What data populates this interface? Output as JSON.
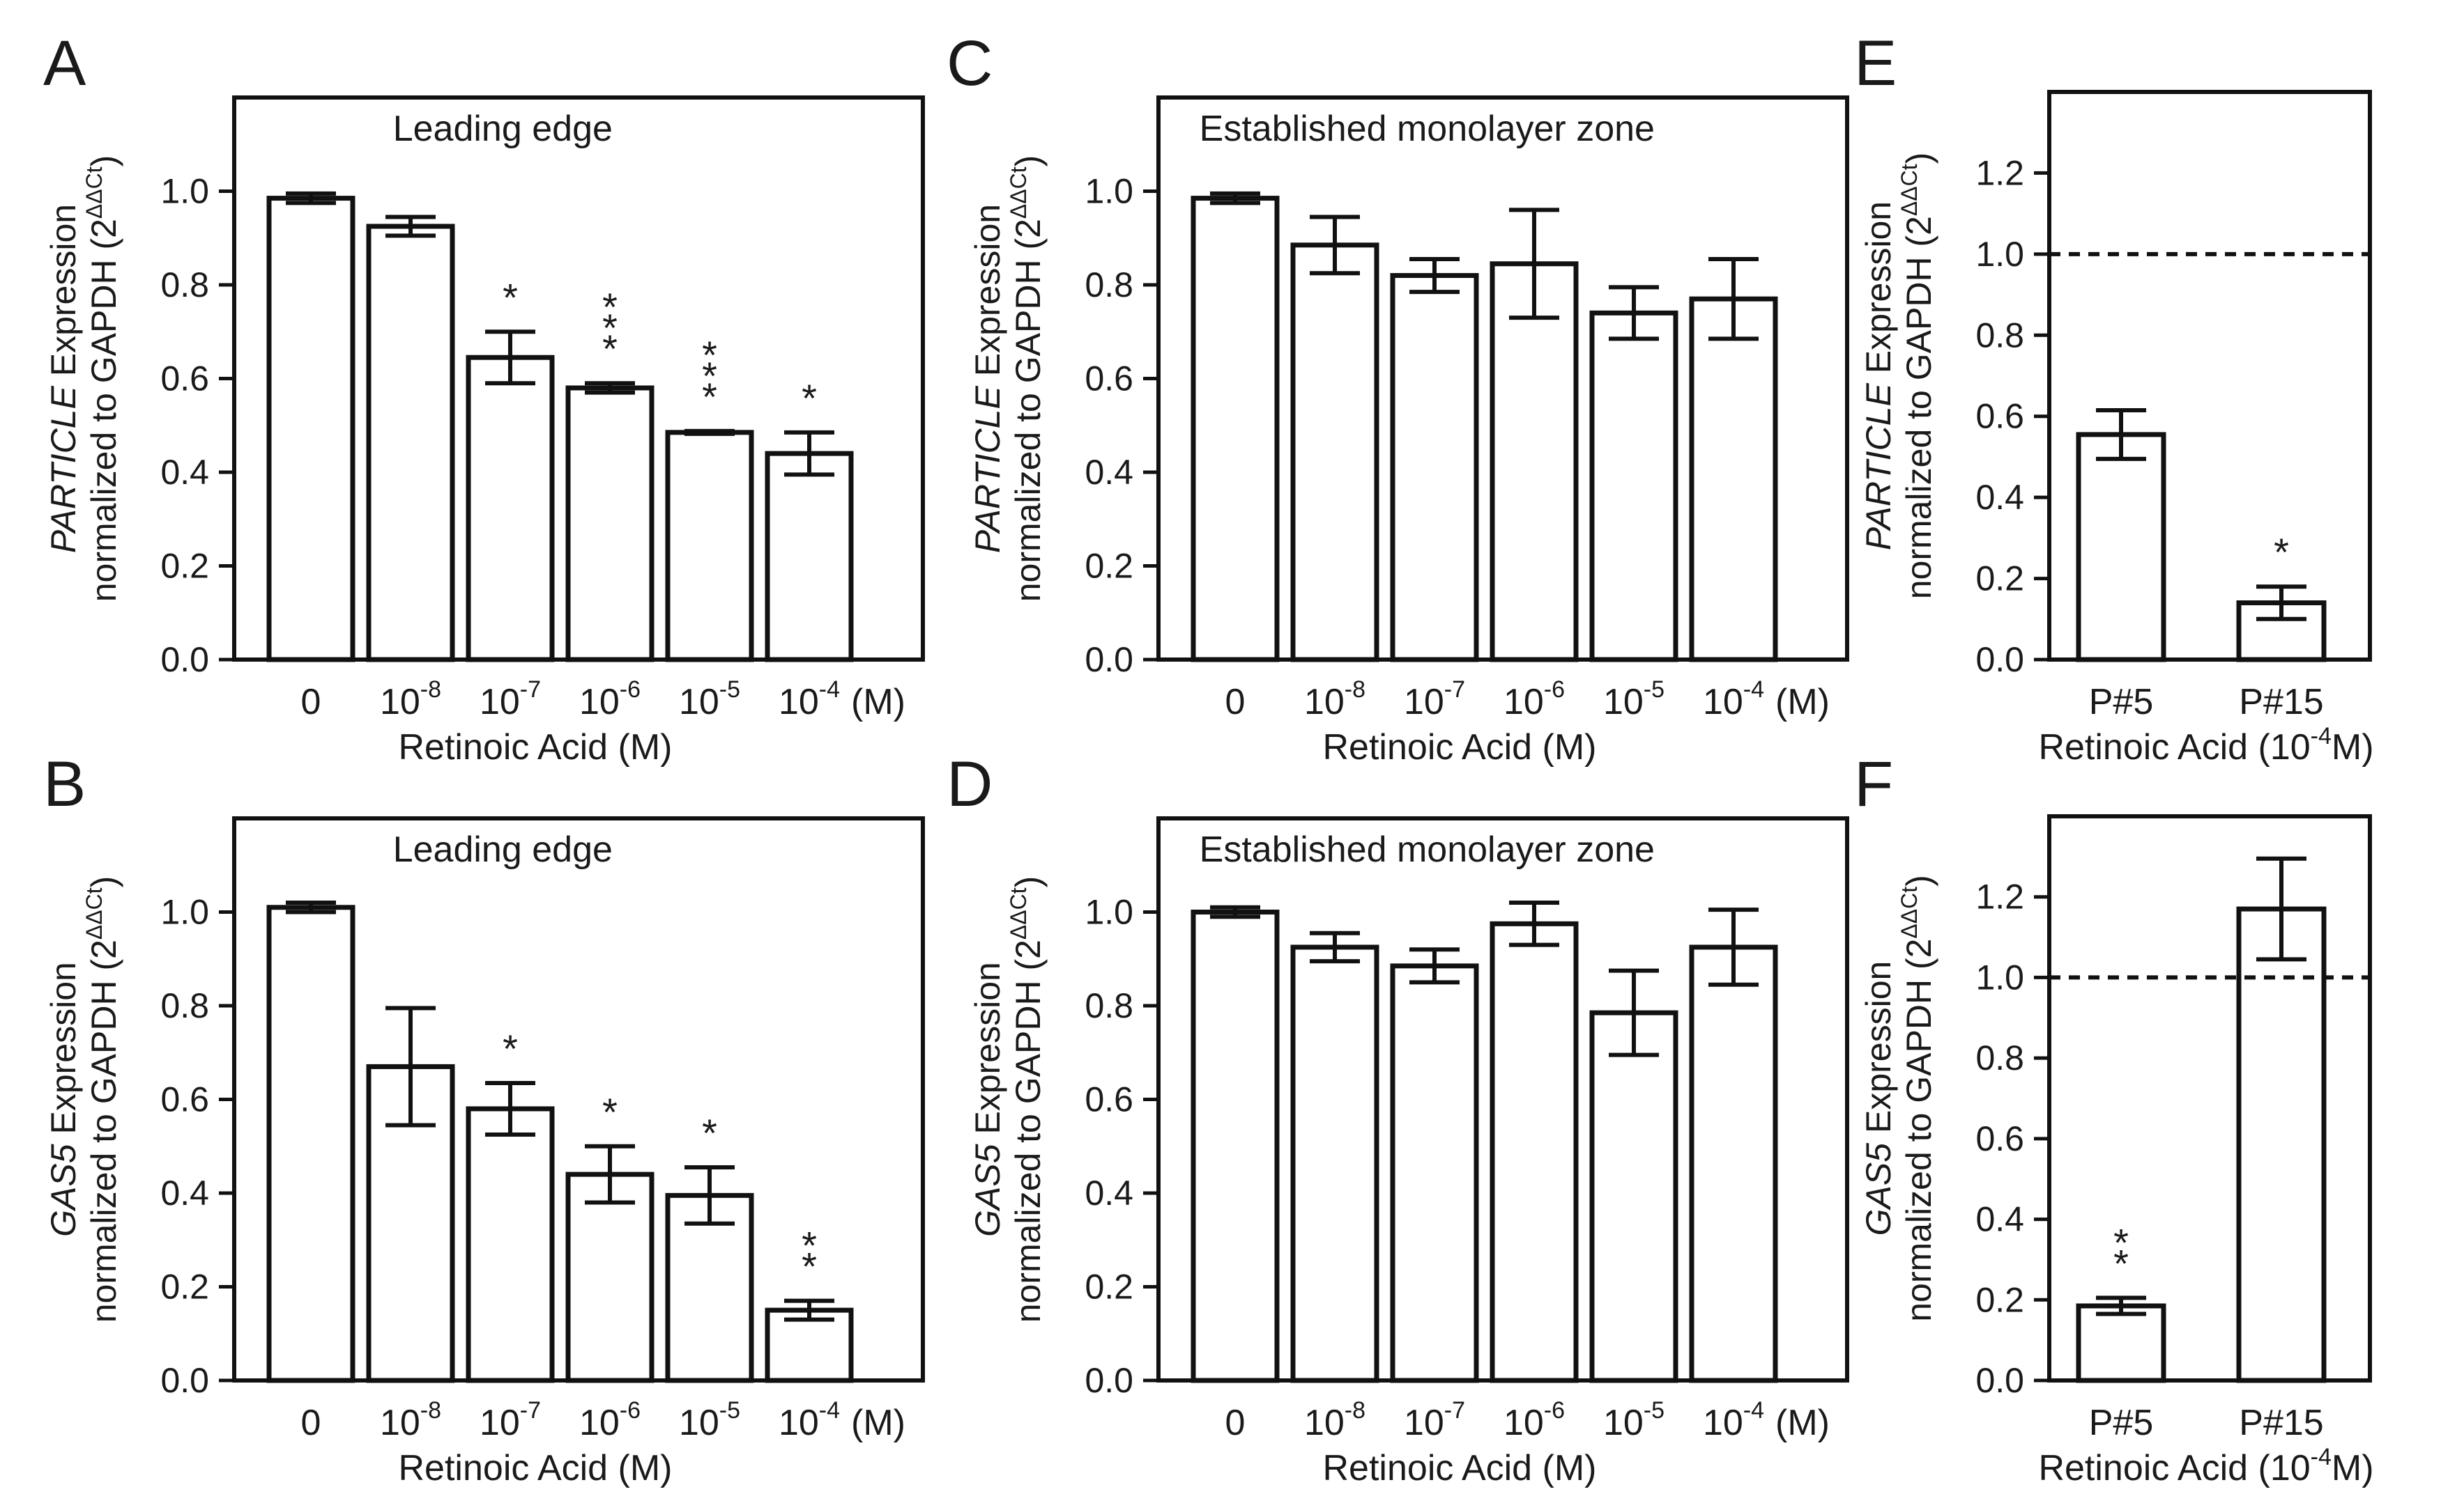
{
  "chart_data": [
    {
      "id": "A",
      "type": "bar",
      "title": "Leading edge",
      "ylabel_italic": "PARTICLE",
      "ylabel_rest": " Expression",
      "ylabel_line2": "normalized to GAPDH (2",
      "ylabel_sup": "ΔΔCt",
      "ylabel_close": ")",
      "xlabel": "Retinoic Acid (M)",
      "unit_label": "(M)",
      "ylim": [
        0,
        1.2
      ],
      "yticks": [
        "0.0",
        "0.2",
        "0.4",
        "0.6",
        "0.8",
        "1.0"
      ],
      "categories": [
        {
          "base": "0",
          "sup": ""
        },
        {
          "base": "10",
          "sup": "-8"
        },
        {
          "base": "10",
          "sup": "-7"
        },
        {
          "base": "10",
          "sup": "-6"
        },
        {
          "base": "10",
          "sup": "-5"
        },
        {
          "base": "10",
          "sup": "-4"
        }
      ],
      "values": [
        0.985,
        0.925,
        0.645,
        0.58,
        0.485,
        0.44
      ],
      "errors": [
        0.01,
        0.02,
        0.055,
        0.01,
        0.003,
        0.045
      ],
      "significance": [
        "",
        "",
        "*",
        "***",
        "***",
        "*"
      ],
      "reference_line": null
    },
    {
      "id": "B",
      "type": "bar",
      "title": "Leading edge",
      "ylabel_italic": "GAS5",
      "ylabel_rest": " Expression",
      "ylabel_line2": "normalized to GAPDH (2",
      "ylabel_sup": "ΔΔCt",
      "ylabel_close": ")",
      "xlabel": "Retinoic Acid (M)",
      "unit_label": "(M)",
      "ylim": [
        0,
        1.2
      ],
      "yticks": [
        "0.0",
        "0.2",
        "0.4",
        "0.6",
        "0.8",
        "1.0"
      ],
      "categories": [
        {
          "base": "0",
          "sup": ""
        },
        {
          "base": "10",
          "sup": "-8"
        },
        {
          "base": "10",
          "sup": "-7"
        },
        {
          "base": "10",
          "sup": "-6"
        },
        {
          "base": "10",
          "sup": "-5"
        },
        {
          "base": "10",
          "sup": "-4"
        }
      ],
      "values": [
        1.01,
        0.67,
        0.58,
        0.44,
        0.395,
        0.15
      ],
      "errors": [
        0.01,
        0.125,
        0.055,
        0.06,
        0.06,
        0.02
      ],
      "significance": [
        "",
        "",
        "*",
        "*",
        "*",
        "**"
      ],
      "reference_line": null
    },
    {
      "id": "C",
      "type": "bar",
      "title": "Established monolayer zone",
      "ylabel_italic": "PARTICLE",
      "ylabel_rest": " Expression",
      "ylabel_line2": "normalized to GAPDH (2",
      "ylabel_sup": "ΔΔCt",
      "ylabel_close": ")",
      "xlabel": "Retinoic Acid (M)",
      "unit_label": "(M)",
      "ylim": [
        0,
        1.2
      ],
      "yticks": [
        "0.0",
        "0.2",
        "0.4",
        "0.6",
        "0.8",
        "1.0"
      ],
      "categories": [
        {
          "base": "0",
          "sup": ""
        },
        {
          "base": "10",
          "sup": "-8"
        },
        {
          "base": "10",
          "sup": "-7"
        },
        {
          "base": "10",
          "sup": "-6"
        },
        {
          "base": "10",
          "sup": "-5"
        },
        {
          "base": "10",
          "sup": "-4"
        }
      ],
      "values": [
        0.985,
        0.885,
        0.82,
        0.845,
        0.74,
        0.77
      ],
      "errors": [
        0.01,
        0.06,
        0.035,
        0.115,
        0.055,
        0.085
      ],
      "significance": [
        "",
        "",
        "",
        "",
        "",
        ""
      ],
      "reference_line": null
    },
    {
      "id": "D",
      "type": "bar",
      "title": "Established monolayer zone",
      "ylabel_italic": "GAS5",
      "ylabel_rest": " Expression",
      "ylabel_line2": "normalized to GAPDH (2",
      "ylabel_sup": "ΔΔCt",
      "ylabel_close": ")",
      "xlabel": "Retinoic Acid (M)",
      "unit_label": "(M)",
      "ylim": [
        0,
        1.2
      ],
      "yticks": [
        "0.0",
        "0.2",
        "0.4",
        "0.6",
        "0.8",
        "1.0"
      ],
      "categories": [
        {
          "base": "0",
          "sup": ""
        },
        {
          "base": "10",
          "sup": "-8"
        },
        {
          "base": "10",
          "sup": "-7"
        },
        {
          "base": "10",
          "sup": "-6"
        },
        {
          "base": "10",
          "sup": "-5"
        },
        {
          "base": "10",
          "sup": "-4"
        }
      ],
      "values": [
        1.0,
        0.925,
        0.885,
        0.975,
        0.785,
        0.925
      ],
      "errors": [
        0.01,
        0.03,
        0.035,
        0.045,
        0.09,
        0.08
      ],
      "significance": [
        "",
        "",
        "",
        "",
        "",
        ""
      ],
      "reference_line": null
    },
    {
      "id": "E",
      "type": "bar",
      "title": "",
      "ylabel_italic": "PARTICLE",
      "ylabel_rest": " Expression",
      "ylabel_line2": "normalized to GAPDH (2",
      "ylabel_sup": "ΔΔCt",
      "ylabel_close": ")",
      "xlabel": "Retinoic Acid (10",
      "xlabel_sup": "-4",
      "xlabel_close": "M)",
      "unit_label": "",
      "ylim": [
        0,
        1.4
      ],
      "yticks": [
        "0.0",
        "0.2",
        "0.4",
        "0.6",
        "0.8",
        "1.0",
        "1.2"
      ],
      "categories": [
        {
          "base": "P#5",
          "sup": ""
        },
        {
          "base": "P#15",
          "sup": ""
        }
      ],
      "values": [
        0.555,
        0.14
      ],
      "errors": [
        0.06,
        0.04
      ],
      "significance": [
        "",
        "*"
      ],
      "reference_line": 1.0
    },
    {
      "id": "F",
      "type": "bar",
      "title": "",
      "ylabel_italic": "GAS5",
      "ylabel_rest": " Expression",
      "ylabel_line2": "normalized to GAPDH (2",
      "ylabel_sup": "ΔΔCt",
      "ylabel_close": ")",
      "xlabel": "Retinoic Acid (10",
      "xlabel_sup": "-4",
      "xlabel_close": "M)",
      "unit_label": "",
      "ylim": [
        0,
        1.4
      ],
      "yticks": [
        "0.0",
        "0.2",
        "0.4",
        "0.6",
        "0.8",
        "1.0",
        "1.2"
      ],
      "categories": [
        {
          "base": "P#5",
          "sup": ""
        },
        {
          "base": "P#15",
          "sup": ""
        }
      ],
      "values": [
        0.185,
        1.17
      ],
      "errors": [
        0.02,
        0.125
      ],
      "significance": [
        "**",
        ""
      ],
      "reference_line": 1.0
    }
  ]
}
